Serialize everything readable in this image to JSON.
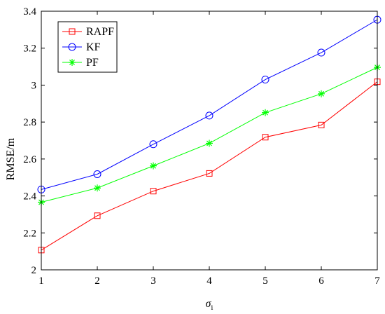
{
  "chart_data": {
    "type": "line",
    "xlabel": "σ",
    "xlabel_sub": "i",
    "ylabel": "RMSE/m",
    "xlim": [
      1,
      7
    ],
    "ylim": [
      2,
      3.4
    ],
    "x_ticks": [
      "1",
      "2",
      "3",
      "4",
      "5",
      "6",
      "7"
    ],
    "y_ticks": [
      "2",
      "2.2",
      "2.4",
      "2.6",
      "2.8",
      "3",
      "3.2",
      "3.4"
    ],
    "grid": false,
    "legend_position": "top-left",
    "x": [
      1,
      2,
      3,
      4,
      5,
      6,
      7
    ],
    "series": [
      {
        "name": "RAPF",
        "color": "#ff0000",
        "marker": "square",
        "values": [
          2.107,
          2.293,
          2.426,
          2.522,
          2.718,
          2.784,
          3.018
        ]
      },
      {
        "name": "KF",
        "color": "#0000ff",
        "marker": "circle",
        "values": [
          2.435,
          2.518,
          2.68,
          2.835,
          3.03,
          3.176,
          3.354
        ]
      },
      {
        "name": "PF",
        "color": "#00ff00",
        "marker": "asterisk",
        "values": [
          2.366,
          2.443,
          2.563,
          2.685,
          2.851,
          2.953,
          3.096
        ]
      }
    ]
  }
}
